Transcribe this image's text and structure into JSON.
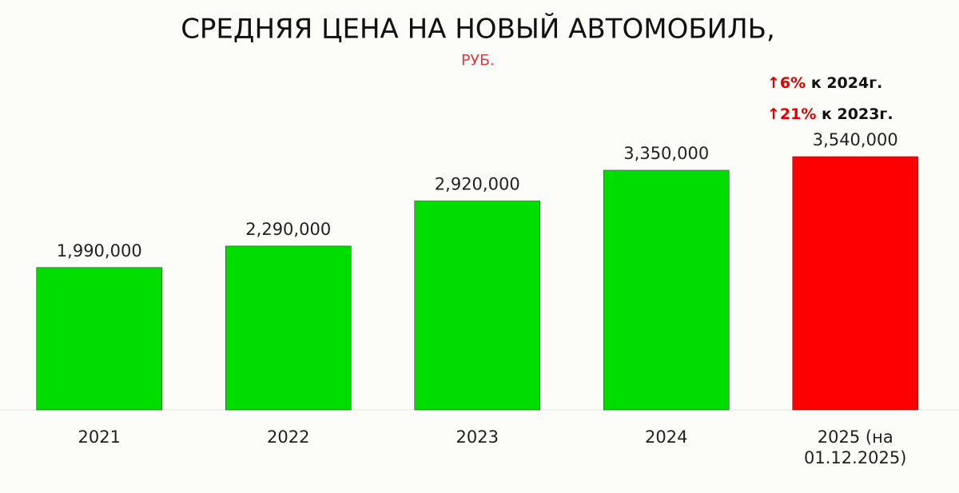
{
  "chart_data": {
    "type": "bar",
    "title": "СРЕДНЯЯ ЦЕНА НА НОВЫЙ АВТОМОБИЛЬ,",
    "subtitle": "РУБ.",
    "categories": [
      "2021",
      "2022",
      "2023",
      "2024",
      "2025 (на 01.12.2025)"
    ],
    "values": [
      1990000,
      2290000,
      2920000,
      3350000,
      3540000
    ],
    "value_labels": [
      "1,990,000",
      "2,290,000",
      "2,920,000",
      "3,350,000",
      "3,540,000"
    ],
    "colors": [
      "#00dd00",
      "#00dd00",
      "#00dd00",
      "#00dd00",
      "#ff0000"
    ],
    "annotations": [
      {
        "highlight": "↑6%",
        "text": "к 2024г."
      },
      {
        "highlight": "↑21%",
        "text": "к 2023г."
      }
    ]
  }
}
